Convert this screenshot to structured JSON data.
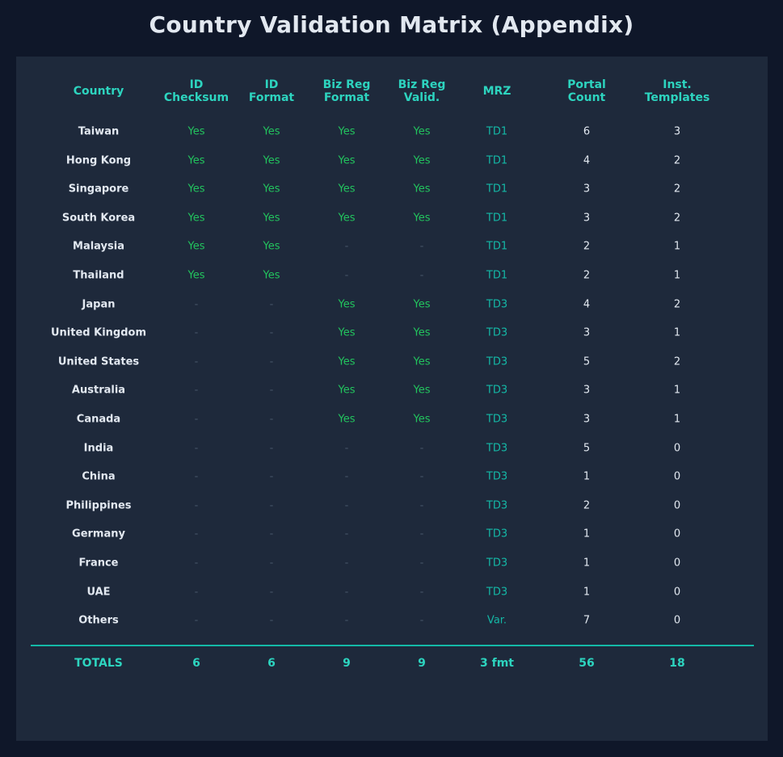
{
  "chart_data": {
    "type": "table",
    "title": "Country Validation Matrix (Appendix)",
    "columns": [
      [
        "Country"
      ],
      [
        "ID",
        "Checksum"
      ],
      [
        "ID",
        "Format"
      ],
      [
        "Biz Reg",
        "Format"
      ],
      [
        "Biz Reg",
        "Valid."
      ],
      [
        "MRZ"
      ],
      [
        "Portal",
        "Count"
      ],
      [
        "Inst.",
        "Templates"
      ]
    ],
    "rows": [
      [
        "Taiwan",
        "Yes",
        "Yes",
        "Yes",
        "Yes",
        "TD1",
        "6",
        "3"
      ],
      [
        "Hong Kong",
        "Yes",
        "Yes",
        "Yes",
        "Yes",
        "TD1",
        "4",
        "2"
      ],
      [
        "Singapore",
        "Yes",
        "Yes",
        "Yes",
        "Yes",
        "TD1",
        "3",
        "2"
      ],
      [
        "South Korea",
        "Yes",
        "Yes",
        "Yes",
        "Yes",
        "TD1",
        "3",
        "2"
      ],
      [
        "Malaysia",
        "Yes",
        "Yes",
        "-",
        "-",
        "TD1",
        "2",
        "1"
      ],
      [
        "Thailand",
        "Yes",
        "Yes",
        "-",
        "-",
        "TD1",
        "2",
        "1"
      ],
      [
        "Japan",
        "-",
        "-",
        "Yes",
        "Yes",
        "TD3",
        "4",
        "2"
      ],
      [
        "United Kingdom",
        "-",
        "-",
        "Yes",
        "Yes",
        "TD3",
        "3",
        "1"
      ],
      [
        "United States",
        "-",
        "-",
        "Yes",
        "Yes",
        "TD3",
        "5",
        "2"
      ],
      [
        "Australia",
        "-",
        "-",
        "Yes",
        "Yes",
        "TD3",
        "3",
        "1"
      ],
      [
        "Canada",
        "-",
        "-",
        "Yes",
        "Yes",
        "TD3",
        "3",
        "1"
      ],
      [
        "India",
        "-",
        "-",
        "-",
        "-",
        "TD3",
        "5",
        "0"
      ],
      [
        "China",
        "-",
        "-",
        "-",
        "-",
        "TD3",
        "1",
        "0"
      ],
      [
        "Philippines",
        "-",
        "-",
        "-",
        "-",
        "TD3",
        "2",
        "0"
      ],
      [
        "Germany",
        "-",
        "-",
        "-",
        "-",
        "TD3",
        "1",
        "0"
      ],
      [
        "France",
        "-",
        "-",
        "-",
        "-",
        "TD3",
        "1",
        "0"
      ],
      [
        "UAE",
        "-",
        "-",
        "-",
        "-",
        "TD3",
        "1",
        "0"
      ],
      [
        "Others",
        "-",
        "-",
        "-",
        "-",
        "Var.",
        "7",
        "0"
      ]
    ],
    "totals": [
      "TOTALS",
      "6",
      "6",
      "9",
      "9",
      "3 fmt",
      "56",
      "18"
    ]
  }
}
